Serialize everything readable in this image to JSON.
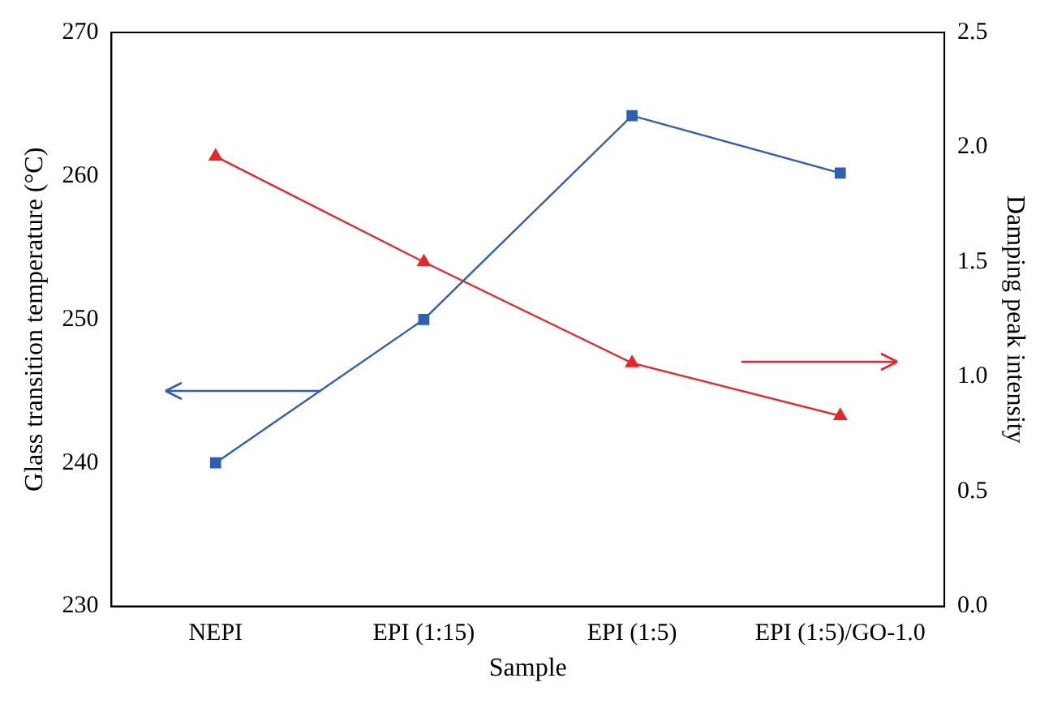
{
  "chart_data": {
    "type": "line",
    "xlabel": "Sample",
    "ylabel": "Glass transition temperature (°C)",
    "y2label": "Damping peak intensity",
    "categories": [
      "NEPI",
      "EPI (1:15)",
      "EPI (1:5)",
      "EPI (1:5)/GO-1.0"
    ],
    "series": [
      {
        "color": "#2e5fb5",
        "values": [
          240,
          250,
          264.2,
          260.2
        ],
        "marker": "square",
        "axis": "y"
      },
      {
        "color": "#e8262a",
        "values": [
          1.96,
          1.5,
          1.06,
          0.83
        ],
        "marker": "triangle",
        "axis": "y2"
      }
    ],
    "ylim": [
      230,
      270
    ],
    "yticks": [
      230,
      240,
      250,
      260,
      270
    ],
    "y2lim": [
      0,
      2.5
    ],
    "y2ticks": [
      {
        "value": 0,
        "label": "0.0"
      },
      {
        "value": 0.5,
        "label": "0.5"
      },
      {
        "value": 1,
        "label": "1.0"
      },
      {
        "value": 1.5,
        "label": "1.5"
      },
      {
        "value": 2,
        "label": "2.0"
      },
      {
        "value": 2.5,
        "label": "2.5"
      }
    ],
    "grid": false,
    "legend": false,
    "line_style": "solid"
  }
}
